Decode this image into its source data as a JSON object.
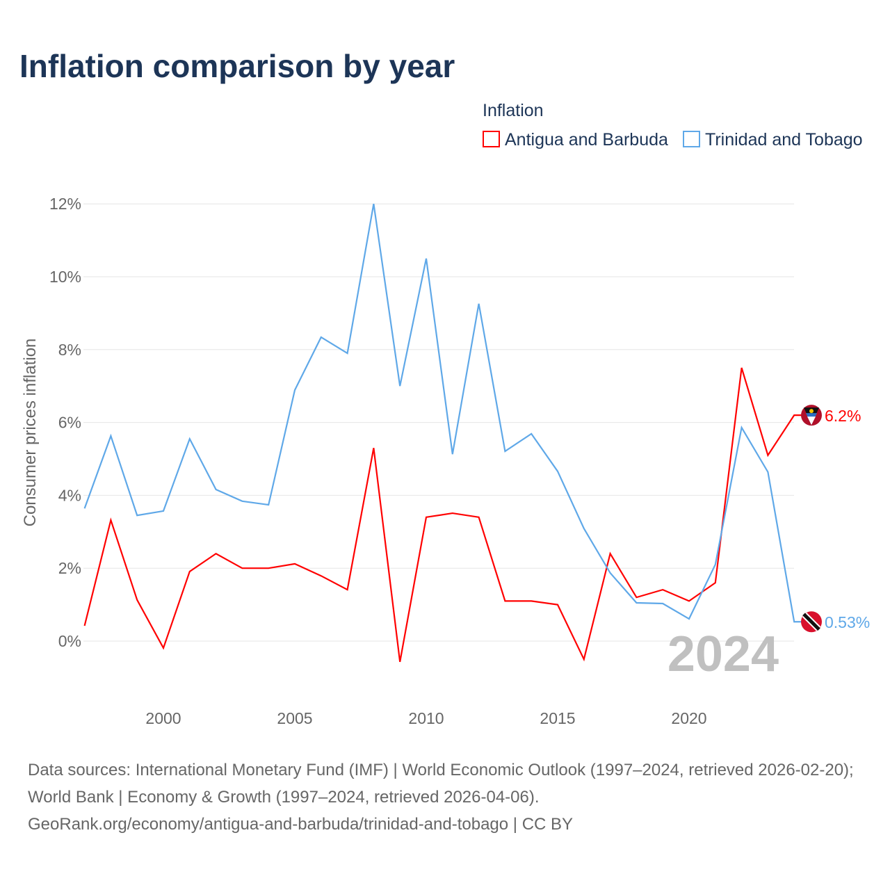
{
  "chart_data": {
    "type": "line",
    "title": "Inflation comparison by year",
    "xlabel": "",
    "ylabel": "Consumer prices inflation",
    "legend_title": "Inflation",
    "legend_position": "top-right",
    "xlim": [
      1997,
      2024
    ],
    "ylim": [
      -1.5,
      12
    ],
    "x_ticks": [
      2000,
      2005,
      2010,
      2015,
      2020
    ],
    "y_ticks": [
      0,
      2,
      4,
      6,
      8,
      10,
      12
    ],
    "y_tick_labels": [
      "0%",
      "2%",
      "4%",
      "6%",
      "8%",
      "10%",
      "12%"
    ],
    "year_label": "2024",
    "x": [
      1997,
      1998,
      1999,
      2000,
      2001,
      2002,
      2003,
      2004,
      2005,
      2006,
      2007,
      2008,
      2009,
      2010,
      2011,
      2012,
      2013,
      2014,
      2015,
      2016,
      2017,
      2018,
      2019,
      2020,
      2021,
      2022,
      2023,
      2024
    ],
    "series": [
      {
        "name": "Antigua and Barbuda",
        "color": "#ff0000",
        "end_label": "6.2%",
        "values": [
          0.42,
          3.32,
          1.13,
          -0.19,
          1.91,
          2.4,
          2.0,
          2.0,
          2.12,
          1.79,
          1.41,
          5.3,
          -0.57,
          3.4,
          3.51,
          3.4,
          1.1,
          1.1,
          1.0,
          -0.5,
          2.4,
          1.2,
          1.41,
          1.1,
          1.6,
          7.5,
          5.1,
          6.2
        ]
      },
      {
        "name": "Trinidad and Tobago",
        "color": "#5fa8e8",
        "end_label": "0.53%",
        "values": [
          3.64,
          5.63,
          3.45,
          3.57,
          5.55,
          4.16,
          3.84,
          3.74,
          6.89,
          8.34,
          7.9,
          12.0,
          7.0,
          10.5,
          5.13,
          9.26,
          5.21,
          5.69,
          4.66,
          3.09,
          1.87,
          1.05,
          1.03,
          0.61,
          2.1,
          5.86,
          4.64,
          0.53
        ]
      }
    ]
  },
  "source_text": "Data sources: International Monetary Fund (IMF) | World Economic Outlook (1997–2024, retrieved 2026-02-20); World Bank | Economy & Growth (1997–2024, retrieved 2026-04-06).",
  "source_url": "GeoRank.org/economy/antigua-and-barbuda/trinidad-and-tobago | CC BY"
}
